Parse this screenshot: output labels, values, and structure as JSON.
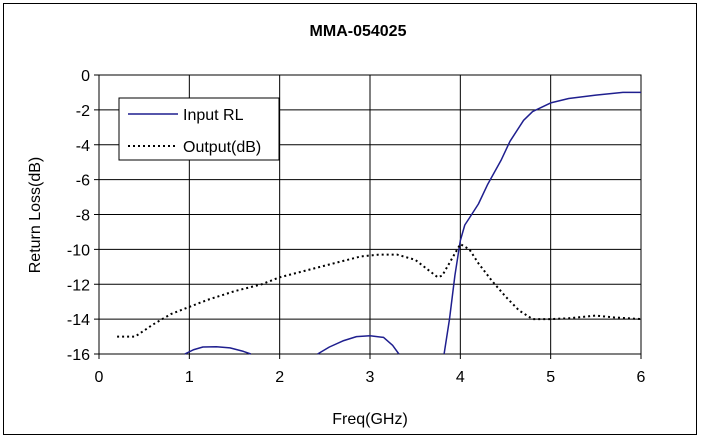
{
  "chart_data": {
    "type": "line",
    "title": "MMA-054025",
    "xlabel": "Freq(GHz)",
    "ylabel": "Return Loss(dB)",
    "xlim": [
      0,
      6
    ],
    "ylim": [
      -16,
      0
    ],
    "xticks": [
      0,
      1,
      2,
      3,
      4,
      5,
      6
    ],
    "yticks": [
      0,
      -2,
      -4,
      -6,
      -8,
      -10,
      -12,
      -14,
      -16
    ],
    "grid": true,
    "legend_position": "top-left",
    "series": [
      {
        "name": "Input RL",
        "color": "#1f1f8f",
        "style": "solid",
        "segments": [
          [
            [
              0.95,
              -16.0
            ],
            [
              1.05,
              -15.75
            ],
            [
              1.15,
              -15.6
            ],
            [
              1.3,
              -15.58
            ],
            [
              1.45,
              -15.65
            ],
            [
              1.6,
              -15.85
            ],
            [
              1.68,
              -16.0
            ]
          ],
          [
            [
              2.42,
              -16.0
            ],
            [
              2.55,
              -15.6
            ],
            [
              2.7,
              -15.25
            ],
            [
              2.85,
              -15.0
            ],
            [
              3.0,
              -14.95
            ],
            [
              3.15,
              -15.05
            ],
            [
              3.25,
              -15.5
            ],
            [
              3.32,
              -16.0
            ]
          ],
          [
            [
              3.82,
              -16.0
            ],
            [
              3.88,
              -14.0
            ],
            [
              3.94,
              -11.5
            ],
            [
              4.0,
              -9.5
            ],
            [
              4.05,
              -8.6
            ],
            [
              4.1,
              -8.2
            ],
            [
              4.2,
              -7.4
            ],
            [
              4.3,
              -6.3
            ],
            [
              4.45,
              -4.9
            ],
            [
              4.55,
              -3.8
            ],
            [
              4.7,
              -2.6
            ],
            [
              4.8,
              -2.1
            ],
            [
              5.0,
              -1.6
            ],
            [
              5.2,
              -1.35
            ],
            [
              5.5,
              -1.15
            ],
            [
              5.8,
              -1.0
            ],
            [
              6.0,
              -1.0
            ]
          ]
        ]
      },
      {
        "name": "Output(dB)",
        "color": "#000000",
        "style": "dotted",
        "segments": [
          [
            [
              0.2,
              -15.0
            ],
            [
              0.4,
              -15.0
            ],
            [
              0.6,
              -14.3
            ],
            [
              0.8,
              -13.7
            ],
            [
              1.0,
              -13.3
            ],
            [
              1.2,
              -12.9
            ],
            [
              1.5,
              -12.4
            ],
            [
              1.8,
              -12.0
            ],
            [
              2.0,
              -11.6
            ],
            [
              2.3,
              -11.2
            ],
            [
              2.6,
              -10.8
            ],
            [
              2.9,
              -10.4
            ],
            [
              3.1,
              -10.3
            ],
            [
              3.3,
              -10.3
            ],
            [
              3.5,
              -10.6
            ],
            [
              3.65,
              -11.2
            ],
            [
              3.75,
              -11.6
            ],
            [
              3.8,
              -11.5
            ],
            [
              3.9,
              -10.6
            ],
            [
              4.0,
              -9.7
            ],
            [
              4.1,
              -10.0
            ],
            [
              4.2,
              -10.8
            ],
            [
              4.35,
              -11.8
            ],
            [
              4.5,
              -12.7
            ],
            [
              4.65,
              -13.5
            ],
            [
              4.8,
              -14.0
            ],
            [
              5.0,
              -14.0
            ],
            [
              5.2,
              -13.95
            ],
            [
              5.5,
              -13.8
            ],
            [
              5.7,
              -13.9
            ],
            [
              6.0,
              -14.0
            ]
          ]
        ]
      }
    ]
  }
}
